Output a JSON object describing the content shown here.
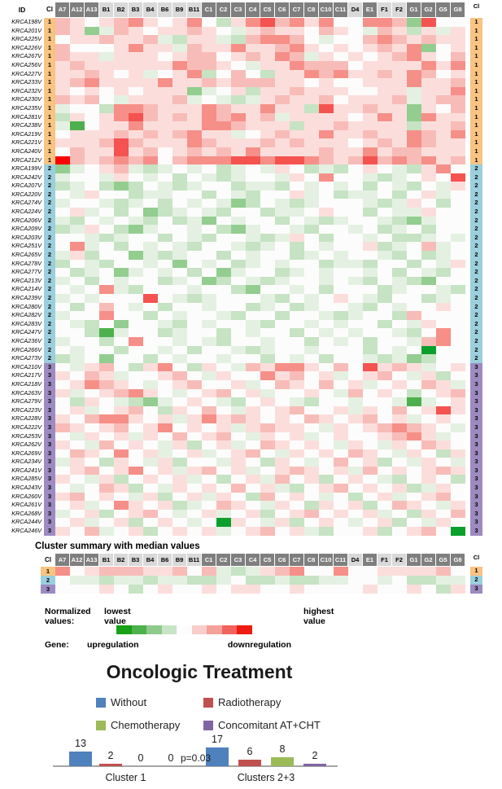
{
  "palette": {
    "header_dark": "#7f7f7f",
    "header_light": "#d9d9d9",
    "axis_color": "#a6a6a6",
    "cluster_colors": {
      "1": "#f9c381",
      "2": "#9bcfdd",
      "3": "#9c8ac1"
    },
    "cell_colors": {
      "F": "#ff0000",
      "R": "#f4534f",
      "r": "#f68f88",
      "p": "#f8bcb8",
      "q": "#fbdedc",
      "w": "#fdfcfc",
      "l": "#e4f1e2",
      "g": "#c6e3c3",
      "G": "#93cd90",
      "D": "#4eb04c",
      "X": "#0aa02c"
    }
  },
  "labels": {
    "normalized": "Normalized values:",
    "lowest": "lowest value",
    "highest": "highest value",
    "gene": "Gene:",
    "up": "upregulation",
    "down": "downregulation"
  },
  "chart_data": [
    {
      "type": "heatmap",
      "name": "gene-expression-heatmap",
      "id_header": "ID",
      "cl_header": "Cl",
      "columns": [
        {
          "label": "A7",
          "shade": "dark"
        },
        {
          "label": "A12",
          "shade": "dark"
        },
        {
          "label": "A13",
          "shade": "dark"
        },
        {
          "label": "B1",
          "shade": "light"
        },
        {
          "label": "B2",
          "shade": "light"
        },
        {
          "label": "B3",
          "shade": "light"
        },
        {
          "label": "B4",
          "shade": "light"
        },
        {
          "label": "B6",
          "shade": "light"
        },
        {
          "label": "B9",
          "shade": "light"
        },
        {
          "label": "B11",
          "shade": "light"
        },
        {
          "label": "C1",
          "shade": "dark"
        },
        {
          "label": "C2",
          "shade": "dark"
        },
        {
          "label": "C3",
          "shade": "dark"
        },
        {
          "label": "C4",
          "shade": "dark"
        },
        {
          "label": "C5",
          "shade": "dark"
        },
        {
          "label": "C6",
          "shade": "dark"
        },
        {
          "label": "C7",
          "shade": "dark"
        },
        {
          "label": "C8",
          "shade": "dark"
        },
        {
          "label": "C10",
          "shade": "dark"
        },
        {
          "label": "C11",
          "shade": "dark"
        },
        {
          "label": "D4",
          "shade": "light"
        },
        {
          "label": "E1",
          "shade": "dark"
        },
        {
          "label": "F1",
          "shade": "light"
        },
        {
          "label": "F2",
          "shade": "light"
        },
        {
          "label": "G1",
          "shade": "dark"
        },
        {
          "label": "G2",
          "shade": "dark"
        },
        {
          "label": "G5",
          "shade": "dark"
        },
        {
          "label": "G8",
          "shade": "dark"
        }
      ],
      "rows": [
        {
          "id": "KRCA198V",
          "cl": "1",
          "cells": "pqwqprqwqrwgqrRprqrwwrrpGRww"
        },
        {
          "id": "KRCA201V",
          "cl": "1",
          "cells": "pqGlpqwqqpqwlqpqqwpqwlpqgqlq"
        },
        {
          "id": "KRCA225V",
          "cl": "1",
          "cells": "wqqpqqplgqqlgprrpwlwwprpqpqq"
        },
        {
          "id": "KRCA226V",
          "cl": "1",
          "cells": "pwwwqrqqlpqqrqqprqwqwqpqrGwq"
        },
        {
          "id": "KRCA267V",
          "cl": "1",
          "cells": "pqqlqqqwqppwqpqrplqwqwqprqwp"
        },
        {
          "id": "KRCA256V",
          "cl": "1",
          "cells": "qpqqqqqqrppqwlqqrpppwqqqqrqr"
        },
        {
          "id": "KRCA227V",
          "cl": "1",
          "cells": "qqpqwqlwqrgwpwgqqrprqqpqrpwq"
        },
        {
          "id": "KRCA233V",
          "cl": "1",
          "cells": "qprqqqqrqqpqpppqqwqwwqqqrqqp"
        },
        {
          "id": "KRCA232V",
          "cl": "1",
          "cells": "qwqwqwqqqGlwqgqqpqqqwwqqlqqr"
        },
        {
          "id": "KRCA230V",
          "cl": "1",
          "cells": "pqpwlqqqplwlglqpqqpwqqqplqpp"
        },
        {
          "id": "KRCA235V",
          "cl": "1",
          "cells": "lwwgrrpqqqrpqqrqqgRqqpqqGqwp"
        },
        {
          "id": "KRCA281V",
          "cl": "1",
          "cells": "gqwqrRpqpqrprqplqqqqwqrqGrqq"
        },
        {
          "id": "KRCA238V",
          "cl": "1",
          "cells": "lDwqqrqqqqrrpqqqgqqpqqqqgqqp"
        },
        {
          "id": "KRCA219V",
          "cl": "1",
          "cells": "wqqqpqpqprqqlwqpqqrqqpqqrpqr"
        },
        {
          "id": "KRCA221V",
          "cl": "1",
          "cells": "qqqpRpqqqrpqqqpqpqqqwqpqrpqq"
        },
        {
          "id": "KRCA240V",
          "cl": "1",
          "cells": "wpqqRqpwqpqpqrqqqqpqqrqppqqq"
        },
        {
          "id": "KRCA212V",
          "cl": "1",
          "cells": "FpqprprwprrrRRrRRrpqpRprprqp"
        },
        {
          "id": "KRCA199V",
          "cl": "2",
          "cells": "Glwqplglwlwglwlqwglgwqwlgqrw"
        },
        {
          "id": "KRCA242V",
          "cl": "2",
          "cells": "lwwlqwlwgwlglwwlqwrwwlglwqwR"
        },
        {
          "id": "KRCA207V",
          "cl": "2",
          "cells": "glwgGgwlglwwgllgwlwlwgwlgwlq"
        },
        {
          "id": "KRCA220V",
          "cl": "2",
          "cells": "wlqwwgllwwgwlgwwqlwgllwgwqlw"
        },
        {
          "id": "KRCA274V",
          "cl": "2",
          "cells": "lwwlglwgwlwlGgwlglwwwlglqwgw"
        },
        {
          "id": "KRCA224V",
          "cl": "2",
          "cells": "wqlwgwGglwlgwwgllwqwwgwllqww"
        },
        {
          "id": "KRCA206V",
          "cl": "2",
          "cells": "lgwlwlgwglGwlwwgwlglwwlgGlww"
        },
        {
          "id": "KRCA209V",
          "cl": "2",
          "cells": "glqwgGlwwlwgGlwwlgwwlwglwgww"
        },
        {
          "id": "KRCA203V",
          "cl": "2",
          "cells": "wwlglwwgwlgwwlglqwgwwlwgglwl"
        },
        {
          "id": "KRCA251V",
          "cl": "2",
          "cells": "wrlwgwlwlgwwlglwgwlwwqglwplw"
        },
        {
          "id": "KRCA265V",
          "cl": "2",
          "cells": "lqgwwGlglwwgwlwwglwlwwlgwglw"
        },
        {
          "id": "KRCA278V",
          "cl": "2",
          "cells": "gwlgwwlwGwlwglwlwwgllgwwgwlq"
        },
        {
          "id": "KRCA277V",
          "cl": "2",
          "cells": "wglwGlwlwgwGlwwglwlwwlwgwlgw"
        },
        {
          "id": "KRCA213V",
          "cl": "2",
          "cells": "lwgwlwwglwGgwlglwwlwlgwlgGww"
        },
        {
          "id": "KRCA214V",
          "cl": "2",
          "cells": "wlwrlgwwwlwwgGwwlwgwwwglwwlg"
        },
        {
          "id": "KRCA239V",
          "cl": "2",
          "cells": "lwlwwwRwlglwwwlgwlwqwlgwwglw"
        },
        {
          "id": "KRCA280V",
          "cl": "2",
          "cells": "wgwpwlwgwwlwwglwglwwlgwlwwqw"
        },
        {
          "id": "KRCA282V",
          "cl": "2",
          "cells": "lwwrwwgwlwwlgwwgwwlglwwgpwww"
        },
        {
          "id": "KRCA283V",
          "cl": "2",
          "cells": "wlgwGwwlgwlwwlgwwlwlwwgwlqww"
        },
        {
          "id": "KRCA247V",
          "cl": "2",
          "cells": "wwgDlwwglwwgwlwwgwlwlwwlgwrw"
        },
        {
          "id": "KRCA236V",
          "cl": "2",
          "cells": "lwwgwrwwlwlgwwlwwgwlwgwwlprw"
        },
        {
          "id": "KRCA266V",
          "cl": "2",
          "cells": "wlwwgwwlwgwwlglwwlwwwgwlwXww"
        },
        {
          "id": "KRCA273V",
          "cl": "2",
          "cells": "glwGwwgwlwwlwwgwlwgwwlglGgww"
        },
        {
          "id": "KRCA210V",
          "cl": "3",
          "cells": "wlqpwgqrwgqwlpqrrqwpwRqpqlwq"
        },
        {
          "id": "KRCA217V",
          "cl": "3",
          "cells": "qwpqlwwqpwlqwwrqpwqlwqpwlqgw"
        },
        {
          "id": "KRCA218V",
          "cl": "3",
          "cells": "wqrpqwlwqpwwqlwpqwpwqlwqwpql"
        },
        {
          "id": "KRCA263V",
          "cl": "3",
          "cells": "qlwqprqwlwqpwqlwwqwlpwqwgwqp"
        },
        {
          "id": "KRCA279V",
          "cl": "3",
          "cells": "wgqwlgGlwqwlgwqwlgwwlwwlDlwq"
        },
        {
          "id": "KRCA223V",
          "cl": "3",
          "cells": "wqlwqpwgqwpwlqwqpwwqlqwpwqRq"
        },
        {
          "id": "KRCA228V",
          "cl": "3",
          "cells": "qwprrqwqlqrqpqwqwpqwqpwqlwqw"
        },
        {
          "id": "KRCA222V",
          "cl": "3",
          "cells": "pqwqpwqrwqwqlqpqqwlqwqprpqwl"
        },
        {
          "id": "KRCA253V",
          "cl": "3",
          "cells": "wlqwqlqwpwqpwlqwqlwqwwqprqlw"
        },
        {
          "id": "KRCA262V",
          "cl": "3",
          "cells": "qwlpwqwlqgwqlwpqwqwlqwlqwpqw"
        },
        {
          "id": "KRCA269V",
          "cl": "3",
          "cells": "wpqwrwqlwqlwqpwlqwqwpqwlqwgq"
        },
        {
          "id": "KRCA234V",
          "cl": "3",
          "cells": "lqwgqwlqgwwlqwgqwlwpwqgwlqwl"
        },
        {
          "id": "KRCA241V",
          "cl": "3",
          "cells": "wqpwqrwqlqpwqlwqpqwqlpwqwqpq"
        },
        {
          "id": "KRCA285V",
          "cl": "3",
          "cells": "qwlqgwqwqlwgwqlpwqgwqwlgwqwg"
        },
        {
          "id": "KRCA243V",
          "cl": "3",
          "cells": "wlwpqgwlqwqwpwqlgwqpwqwqglqw"
        },
        {
          "id": "KRCA260V",
          "cl": "3",
          "cells": "qpwqwlqgwqlqwgpwqwlwgwqlwqpw"
        },
        {
          "id": "KRCA261V",
          "cl": "3",
          "cells": "wqlwrqwqglwpqwlqwgqwqgwpqwlq"
        },
        {
          "id": "KRCA268V",
          "cl": "3",
          "cells": "lwqgwqpwlwqlwqgwqpwqwqlwgqwp"
        },
        {
          "id": "KRCA244V",
          "cl": "3",
          "cells": "wqlwqgwqwlwXqwlqgwqwlwqgwlqw"
        },
        {
          "id": "KRCA246V",
          "cl": "3",
          "cells": "qwplwqgwqwqlwqpwqlgwwqgwqpwX"
        }
      ]
    },
    {
      "type": "heatmap",
      "name": "cluster-summary-heatmap",
      "title": "Cluster summary with median values",
      "cl_header": "Cl",
      "rows": [
        {
          "id": "1",
          "cl": "1",
          "cells": "rwqpppqqpwplglqprwwrwwqqqqpw"
        },
        {
          "id": "2",
          "cl": "2",
          "cells": "wllgllgllgglwgglggllwwlwggll"
        },
        {
          "id": "3",
          "cl": "3",
          "cells": "wwwqwgwqwwqwqqwwqwwwwqwwqwgq"
        }
      ]
    },
    {
      "type": "bar",
      "name": "oncologic-treatment-chart",
      "title": "Oncologic Treatment",
      "categories": [
        "Cluster 1",
        "Clusters 2+3"
      ],
      "series": [
        {
          "name": "Without",
          "color": "#4f81bd",
          "values": [
            13,
            17
          ]
        },
        {
          "name": "Radiotherapy",
          "color": "#c0504d",
          "values": [
            2,
            6
          ]
        },
        {
          "name": "Chemotherapy",
          "color": "#9bbb59",
          "values": [
            0,
            8
          ]
        },
        {
          "name": "Concomitant AT+CHT",
          "color": "#8064a2",
          "values": [
            0,
            2
          ]
        }
      ],
      "annotation": "p=0.03",
      "value_labels": [
        [
          "13",
          "2",
          "0",
          "0"
        ],
        [
          "17",
          "6",
          "8",
          "2"
        ]
      ],
      "ylim": [
        0,
        20
      ],
      "grid": false,
      "legend_position": "top"
    }
  ],
  "scale_colors": [
    "#18a018",
    "#4db14c",
    "#8fca8d",
    "#c8e4c6",
    "#fdfdfd",
    "#f8cecb",
    "#f5a09a",
    "#f1635c",
    "#ee1c10"
  ]
}
